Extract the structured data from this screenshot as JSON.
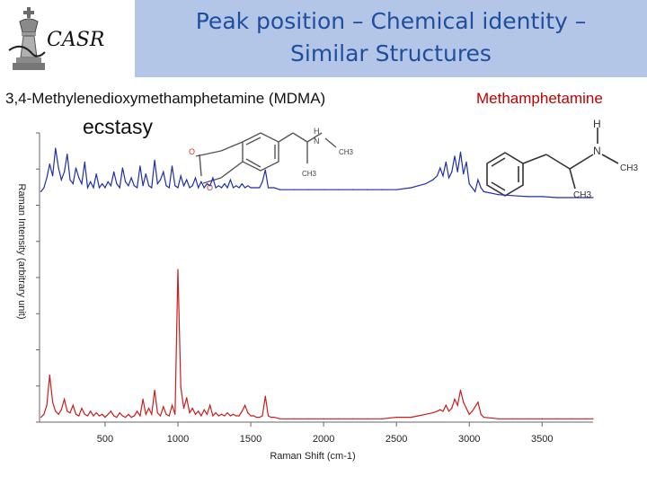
{
  "header": {
    "title_line1": "Peak position – Chemical identity –",
    "title_line2": "Similar Structures",
    "logo_text": "CASR"
  },
  "compounds": {
    "left_name": "3,4-Methylenedioxymethamphetamine (MDMA)",
    "left_common": "ecstasy",
    "right_name": "Methamphetamine"
  },
  "structures": {
    "mdma_atoms": [
      "H",
      "N",
      "CH3",
      "CH3",
      "O",
      "O"
    ],
    "meth_atoms": [
      "H",
      "N",
      "CH3",
      "CH3"
    ]
  },
  "colors": {
    "mdma_series": "#1f2fa8",
    "meth_series": "#c81e1e",
    "title": "#1f4e9e",
    "header_band": "#b3c6e7"
  },
  "chart_data": {
    "type": "line",
    "xlabel": "Raman Shift (cm-1)",
    "ylabel": "Raman Intensity (arbitrary unit)",
    "xlim": [
      50,
      3850
    ],
    "xticks": [
      500,
      1000,
      1500,
      2000,
      2500,
      3000,
      3500
    ],
    "ylim": [
      0,
      1
    ],
    "grid": false,
    "series": [
      {
        "name": "MDMA",
        "color": "#1f2fa8",
        "x": [
          60,
          80,
          100,
          120,
          140,
          160,
          180,
          200,
          220,
          240,
          260,
          280,
          300,
          320,
          340,
          360,
          380,
          400,
          420,
          440,
          460,
          480,
          500,
          520,
          540,
          560,
          580,
          600,
          620,
          640,
          660,
          680,
          700,
          720,
          740,
          760,
          780,
          800,
          820,
          840,
          860,
          880,
          900,
          920,
          940,
          960,
          980,
          1000,
          1020,
          1040,
          1060,
          1080,
          1100,
          1120,
          1140,
          1160,
          1180,
          1200,
          1220,
          1240,
          1260,
          1280,
          1300,
          1320,
          1340,
          1360,
          1380,
          1400,
          1420,
          1440,
          1460,
          1480,
          1500,
          1520,
          1540,
          1560,
          1580,
          1600,
          1620,
          1640,
          1660,
          1700,
          1800,
          1900,
          2000,
          2100,
          2200,
          2300,
          2400,
          2500,
          2600,
          2650,
          2700,
          2750,
          2780,
          2800,
          2820,
          2840,
          2860,
          2880,
          2900,
          2920,
          2940,
          2960,
          2980,
          3000,
          3020,
          3040,
          3060,
          3080,
          3100,
          3200,
          3300,
          3400,
          3500,
          3600,
          3700,
          3800,
          3850
        ],
        "y": [
          0.78,
          0.8,
          0.85,
          0.92,
          0.86,
          1.0,
          0.9,
          0.84,
          0.88,
          0.97,
          0.84,
          0.82,
          0.9,
          0.85,
          0.82,
          0.93,
          0.8,
          0.83,
          0.8,
          0.87,
          0.8,
          0.82,
          0.8,
          0.83,
          0.81,
          0.88,
          0.82,
          0.8,
          0.9,
          0.83,
          0.81,
          0.85,
          0.81,
          0.8,
          0.91,
          0.81,
          0.87,
          0.81,
          0.8,
          0.94,
          0.82,
          0.84,
          0.88,
          0.81,
          0.8,
          0.91,
          0.81,
          0.8,
          0.86,
          0.81,
          0.84,
          0.8,
          0.81,
          0.85,
          0.8,
          0.83,
          0.8,
          0.82,
          0.81,
          0.85,
          0.8,
          0.81,
          0.8,
          0.82,
          0.8,
          0.84,
          0.8,
          0.81,
          0.8,
          0.82,
          0.8,
          0.81,
          0.8,
          0.8,
          0.8,
          0.8,
          0.83,
          0.89,
          0.8,
          0.8,
          0.8,
          0.79,
          0.79,
          0.79,
          0.79,
          0.79,
          0.79,
          0.79,
          0.79,
          0.79,
          0.8,
          0.81,
          0.82,
          0.84,
          0.86,
          0.9,
          0.86,
          0.93,
          0.85,
          0.88,
          0.96,
          0.88,
          0.98,
          0.87,
          0.93,
          0.82,
          0.8,
          0.78,
          0.84,
          0.8,
          0.78,
          0.765,
          0.76,
          0.755,
          0.755,
          0.75,
          0.75,
          0.75,
          0.75
        ]
      },
      {
        "name": "Methamphetamine",
        "color": "#c81e1e",
        "x": [
          60,
          80,
          100,
          120,
          140,
          160,
          180,
          200,
          220,
          240,
          260,
          280,
          300,
          320,
          340,
          360,
          380,
          400,
          420,
          440,
          460,
          480,
          500,
          520,
          540,
          560,
          580,
          600,
          620,
          640,
          660,
          680,
          700,
          720,
          740,
          760,
          780,
          800,
          820,
          840,
          860,
          880,
          900,
          920,
          940,
          960,
          980,
          1000,
          1020,
          1040,
          1060,
          1080,
          1100,
          1120,
          1140,
          1160,
          1180,
          1200,
          1220,
          1240,
          1260,
          1280,
          1300,
          1320,
          1340,
          1360,
          1380,
          1400,
          1420,
          1440,
          1460,
          1480,
          1500,
          1520,
          1540,
          1560,
          1580,
          1600,
          1620,
          1640,
          1660,
          1700,
          1800,
          1900,
          2000,
          2100,
          2200,
          2300,
          2400,
          2500,
          2600,
          2650,
          2700,
          2750,
          2780,
          2800,
          2820,
          2840,
          2860,
          2880,
          2900,
          2920,
          2940,
          2960,
          2980,
          3000,
          3020,
          3040,
          3060,
          3080,
          3100,
          3200,
          3300,
          3400,
          3500,
          3600,
          3700,
          3800,
          3850
        ],
        "y": [
          0.02,
          0.04,
          0.1,
          0.3,
          0.12,
          0.06,
          0.04,
          0.07,
          0.14,
          0.06,
          0.05,
          0.1,
          0.04,
          0.03,
          0.08,
          0.04,
          0.03,
          0.06,
          0.03,
          0.05,
          0.03,
          0.04,
          0.02,
          0.04,
          0.06,
          0.03,
          0.02,
          0.05,
          0.03,
          0.02,
          0.04,
          0.02,
          0.03,
          0.06,
          0.03,
          0.14,
          0.04,
          0.08,
          0.04,
          0.2,
          0.05,
          0.03,
          0.09,
          0.04,
          0.03,
          0.1,
          0.04,
          1.0,
          0.22,
          0.08,
          0.15,
          0.05,
          0.08,
          0.04,
          0.06,
          0.03,
          0.07,
          0.04,
          0.1,
          0.03,
          0.05,
          0.03,
          0.04,
          0.03,
          0.05,
          0.03,
          0.04,
          0.03,
          0.03,
          0.06,
          0.1,
          0.05,
          0.03,
          0.03,
          0.02,
          0.02,
          0.03,
          0.16,
          0.03,
          0.02,
          0.02,
          0.01,
          0.01,
          0.01,
          0.01,
          0.01,
          0.01,
          0.01,
          0.01,
          0.02,
          0.02,
          0.03,
          0.04,
          0.05,
          0.06,
          0.07,
          0.06,
          0.1,
          0.06,
          0.08,
          0.14,
          0.1,
          0.2,
          0.12,
          0.08,
          0.04,
          0.06,
          0.09,
          0.12,
          0.04,
          0.02,
          0.01,
          0.01,
          0.01,
          0.01,
          0.01,
          0.01,
          0.01,
          0.01
        ]
      }
    ]
  }
}
